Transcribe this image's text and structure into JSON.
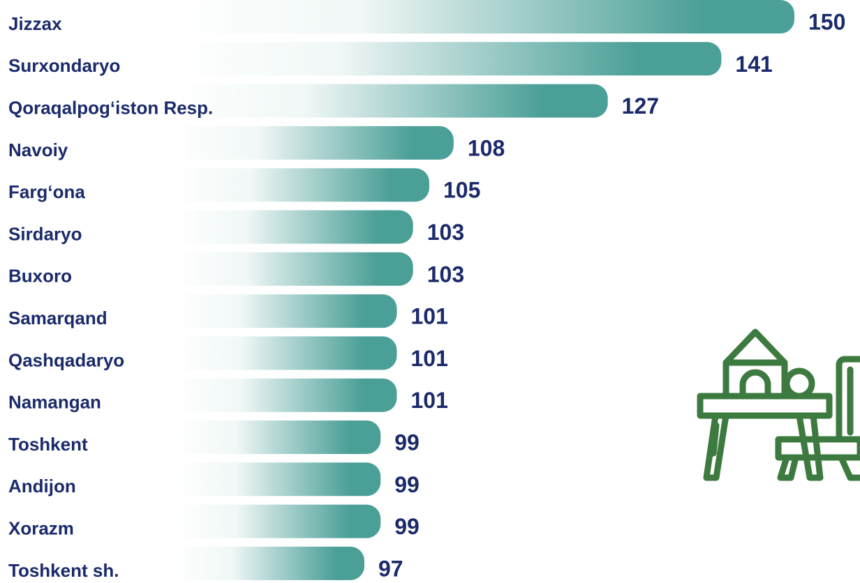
{
  "chart_data": {
    "type": "bar",
    "orientation": "horizontal",
    "categories": [
      "Jizzax",
      "Surxondaryo",
      "Qoraqalpog‘iston Resp.",
      "Navoiy",
      "Farg‘ona",
      "Sirdaryo",
      "Buxoro",
      "Samarqand",
      "Qashqadaryo",
      "Namangan",
      "Toshkent",
      "Andijon",
      "Xorazm",
      "Toshkent sh."
    ],
    "values": [
      150,
      141,
      127,
      108,
      105,
      103,
      103,
      101,
      101,
      101,
      99,
      99,
      99,
      97
    ],
    "color": "#4a9f97"
  }
}
